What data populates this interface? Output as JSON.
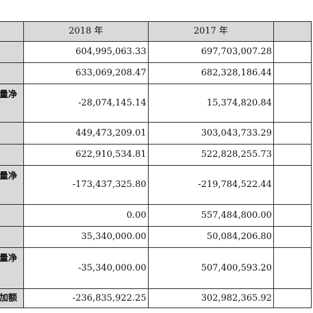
{
  "header": {
    "col_2018": "2018 年",
    "col_2017": "2017 年"
  },
  "rows": [
    {
      "label": "",
      "v2018": "604,995,063.33",
      "v2017": "697,703,007.28"
    },
    {
      "label": "",
      "v2018": "633,069,208.47",
      "v2017": "682,328,186.44"
    },
    {
      "label": "量净",
      "v2018": "-28,074,145.14",
      "v2017": "15,374,820.84"
    },
    {
      "label": "",
      "v2018": "449,473,209.01",
      "v2017": "303,043,733.29"
    },
    {
      "label": "",
      "v2018": "622,910,534.81",
      "v2017": "522,828,255.73"
    },
    {
      "label": "量净",
      "v2018": "-173,437,325.80",
      "v2017": "-219,784,522.44"
    },
    {
      "label": "",
      "v2018": "0.00",
      "v2017": "557,484,800.00"
    },
    {
      "label": "",
      "v2018": "35,340,000.00",
      "v2017": "50,084,206.80"
    },
    {
      "label": "量净",
      "v2018": "-35,340,000.00",
      "v2017": "507,400,593.20"
    },
    {
      "label": "加额",
      "v2018": "-236,835,922.25",
      "v2017": "302,982,365.92"
    }
  ]
}
